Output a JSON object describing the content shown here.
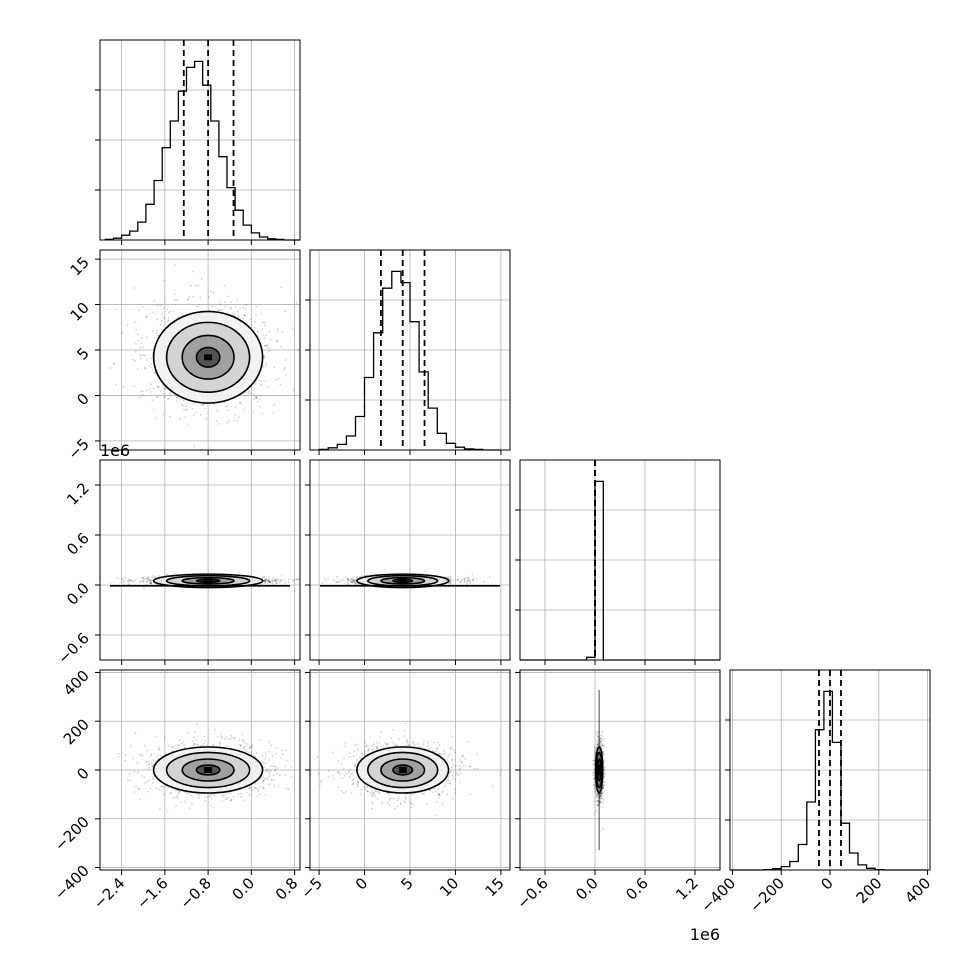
{
  "chart_data": {
    "type": "corner",
    "grid": true,
    "quantile_lines": [
      0.16,
      0.5,
      0.84
    ],
    "point_color": "#000000",
    "line_color": "#000000",
    "params": [
      {
        "range": [
          -2.8,
          0.9
        ],
        "ticks": [
          -2.4,
          -1.6,
          -0.8,
          0.0,
          0.8
        ],
        "tick_labels": [
          "−2.4",
          "−1.6",
          "−0.8",
          "0.0",
          "0.8"
        ],
        "offset_text": "",
        "mean": -0.8,
        "std": 0.48
      },
      {
        "range": [
          -6,
          16
        ],
        "ticks": [
          -5,
          0,
          5,
          10,
          15
        ],
        "tick_labels": [
          "−5",
          "0",
          "5",
          "10",
          "15"
        ],
        "offset_text": "",
        "mean": 4.2,
        "std": 2.4
      },
      {
        "range": [
          -0.9,
          1.5
        ],
        "ticks": [
          -0.6,
          0.0,
          0.6,
          1.2
        ],
        "tick_labels": [
          "−0.6",
          "0.0",
          "0.6",
          "1.2"
        ],
        "offset_text": "1e6",
        "mean": 0.05,
        "std": 0.02
      },
      {
        "range": [
          -410,
          410
        ],
        "ticks": [
          -400,
          -200,
          0,
          200,
          400
        ],
        "tick_labels": [
          "−400",
          "−200",
          "0",
          "200",
          "400"
        ],
        "offset_text": "",
        "mean": 0,
        "std": 45
      }
    ],
    "histograms": [
      {
        "param": 0,
        "bins": [
          -2.7,
          -2.55,
          -2.4,
          -2.25,
          -2.1,
          -1.95,
          -1.8,
          -1.65,
          -1.5,
          -1.35,
          -1.2,
          -1.05,
          -0.9,
          -0.75,
          -0.6,
          -0.45,
          -0.3,
          -0.15,
          0.0,
          0.15,
          0.3,
          0.45,
          0.6,
          0.75,
          0.9
        ],
        "counts": [
          1,
          3,
          8,
          15,
          30,
          60,
          100,
          155,
          200,
          250,
          290,
          300,
          260,
          200,
          140,
          88,
          50,
          25,
          12,
          5,
          2,
          1,
          0,
          0
        ],
        "quantiles": [
          -1.25,
          -0.8,
          -0.33
        ]
      },
      {
        "param": 1,
        "bins": [
          -5,
          -4,
          -3,
          -2,
          -1,
          0,
          1,
          2,
          3,
          4,
          5,
          6,
          7,
          8,
          9,
          10,
          11,
          12,
          13,
          14,
          15
        ],
        "counts": [
          1,
          4,
          10,
          25,
          60,
          130,
          210,
          290,
          320,
          300,
          230,
          140,
          75,
          30,
          12,
          5,
          2,
          1,
          0,
          0
        ],
        "quantiles": [
          1.8,
          4.2,
          6.6
        ]
      },
      {
        "param": 2,
        "bins": [
          -0.9,
          -0.8,
          -0.7,
          -0.6,
          -0.5,
          -0.4,
          -0.3,
          -0.2,
          -0.1,
          0.0,
          0.1,
          0.2,
          0.3,
          0.4,
          0.5,
          0.6,
          0.7,
          0.8,
          0.9,
          1.0,
          1.1,
          1.2,
          1.3,
          1.4,
          1.5
        ],
        "counts": [
          0,
          0,
          0,
          0,
          0,
          0,
          0,
          0,
          3,
          200,
          0,
          0,
          0,
          0,
          0,
          0,
          0,
          0,
          0,
          0,
          0,
          0,
          0,
          0
        ],
        "quantiles": [
          0.0,
          0.0,
          0.0
        ]
      },
      {
        "param": 3,
        "bins": [
          -410,
          -375,
          -340,
          -305,
          -270,
          -235,
          -200,
          -165,
          -130,
          -95,
          -60,
          -25,
          10,
          45,
          80,
          115,
          150,
          185,
          220,
          255,
          290,
          325,
          360,
          395
        ],
        "counts": [
          0,
          0,
          0,
          0,
          1,
          3,
          8,
          20,
          60,
          160,
          330,
          420,
          300,
          110,
          40,
          12,
          4,
          1,
          0,
          0,
          0,
          0,
          0
        ],
        "quantiles": [
          -45,
          0,
          45
        ]
      }
    ]
  }
}
